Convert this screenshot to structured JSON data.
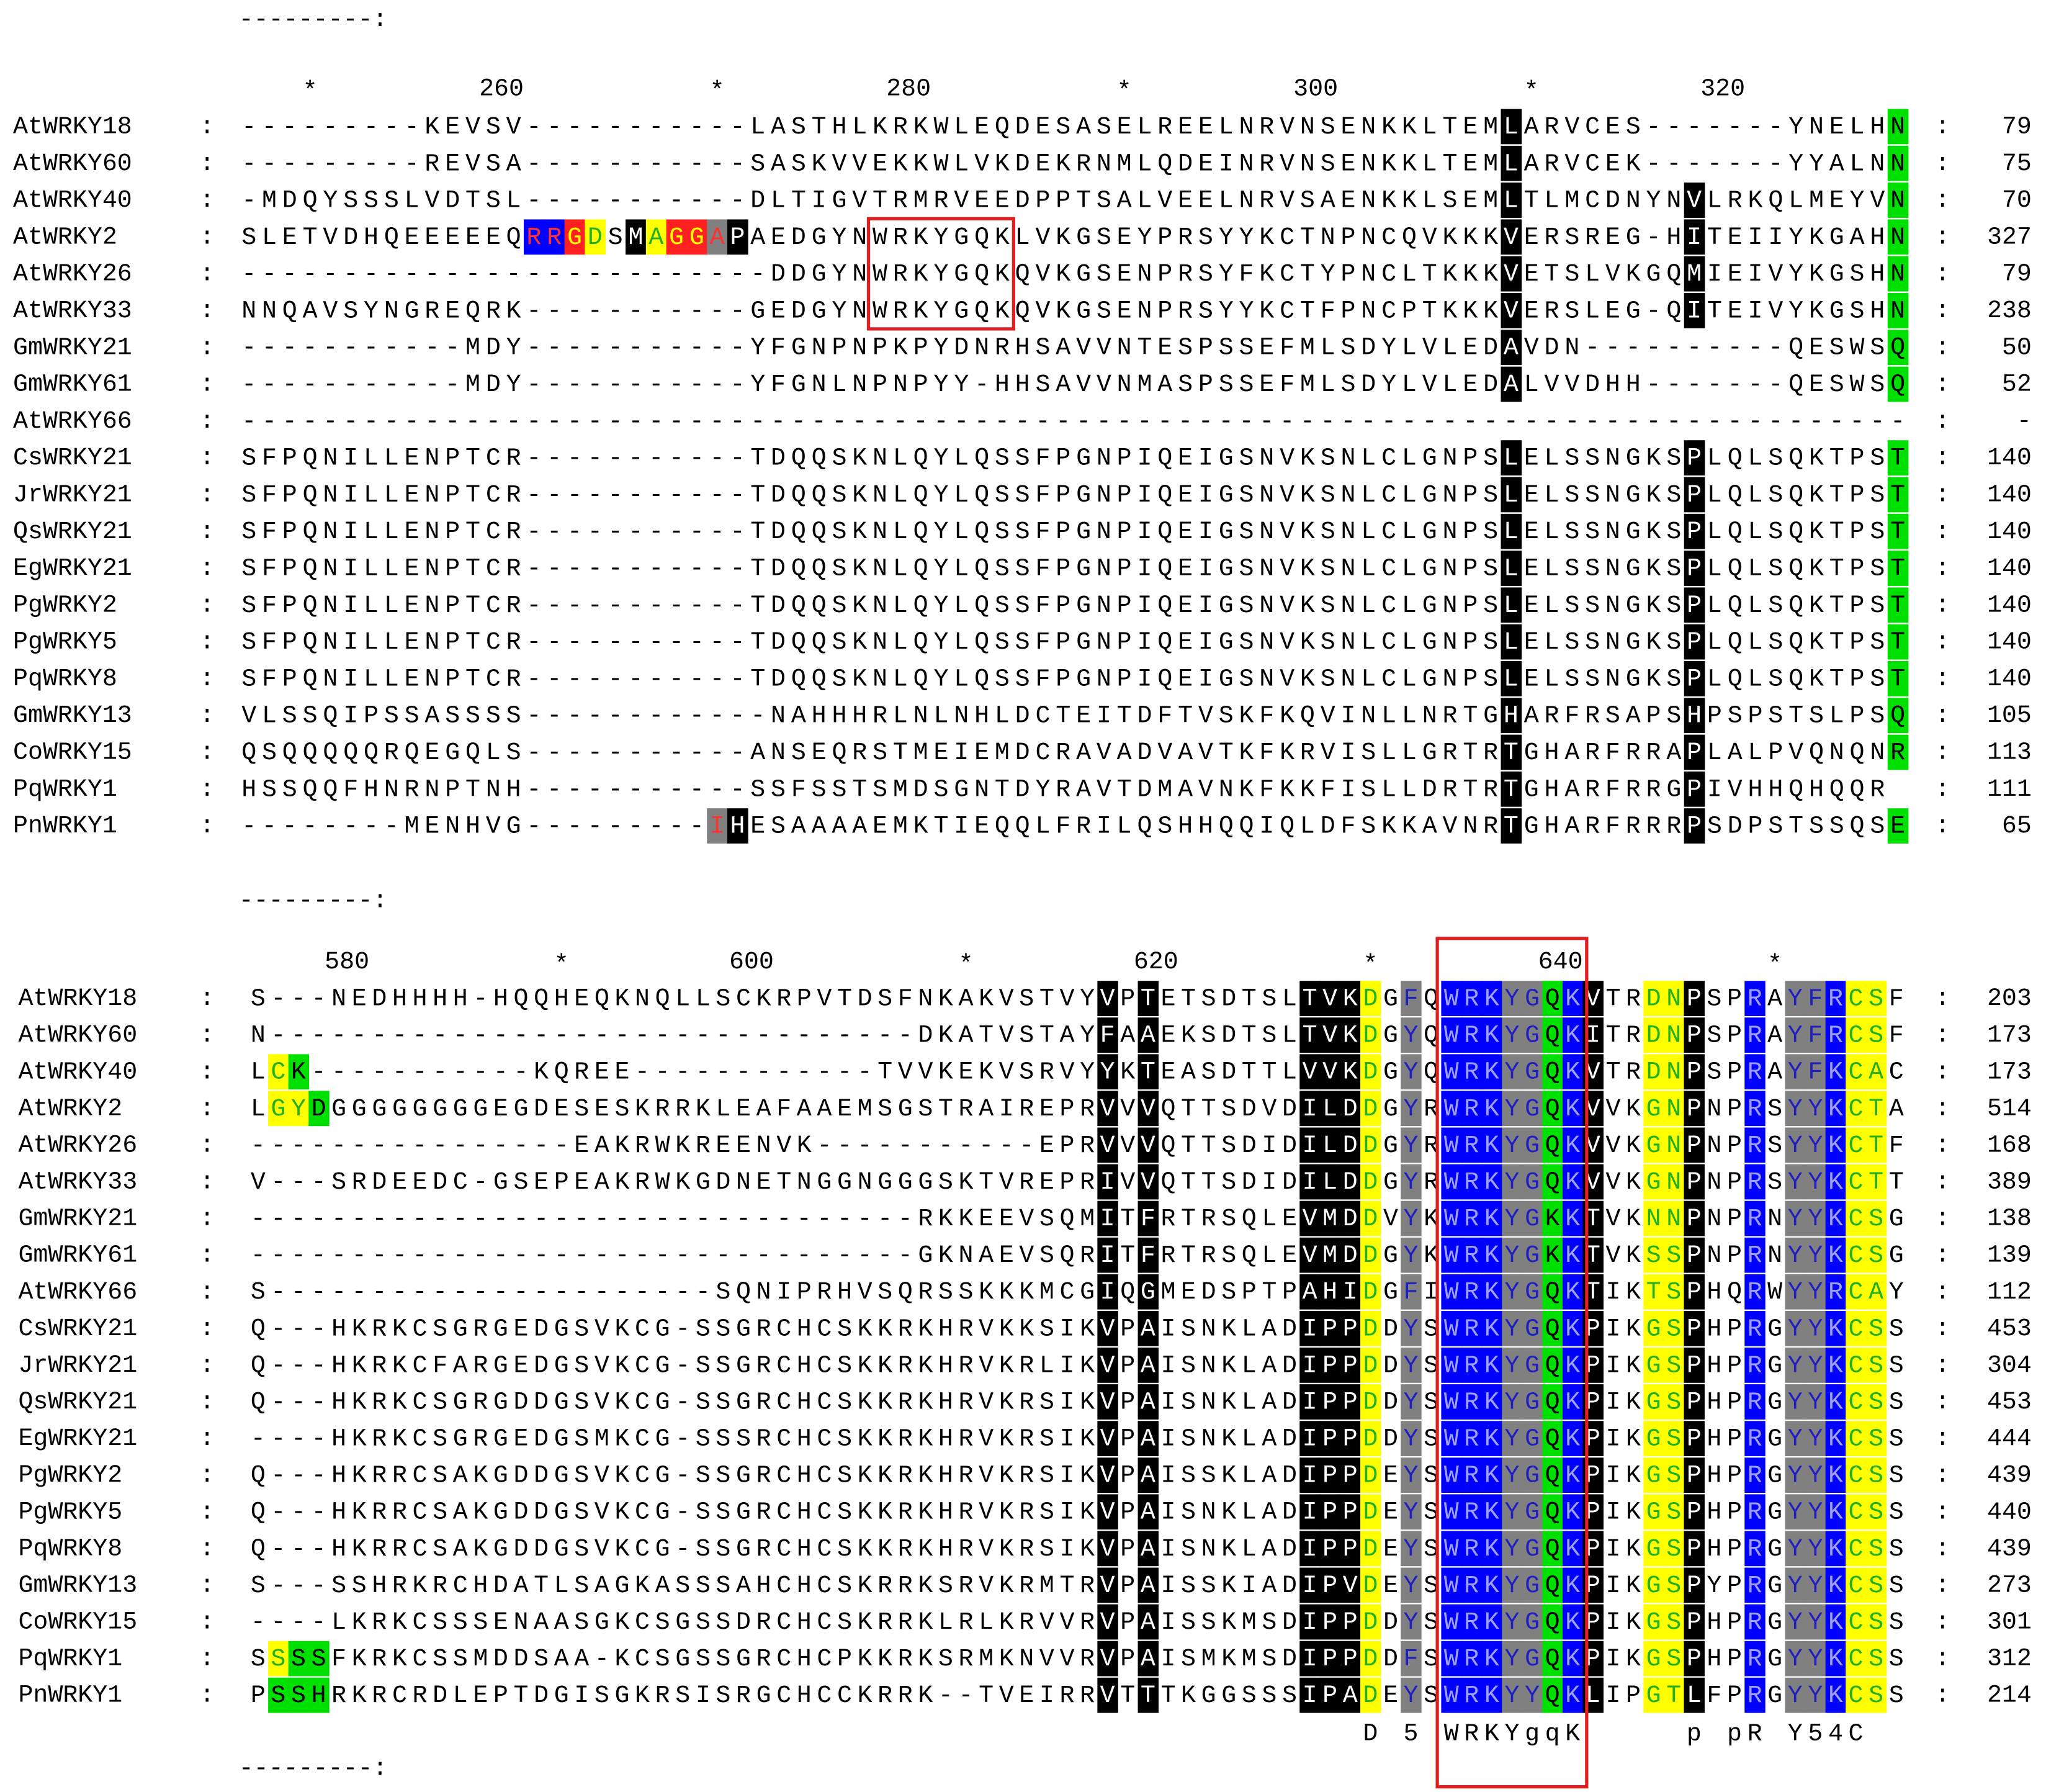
{
  "alignment": {
    "separator": "---------:",
    "delimiter": ":",
    "blocks": [
      {
        "ruler": [
          "*",
          260,
          "*",
          280,
          "*",
          300,
          "*",
          320
        ],
        "rows": [
          {
            "name": "AtWRKY18",
            "sequence": "---------KEVSV-----------LASTHLKRKWLEQDESASELREELNRVNSENKKLTEMLARVCES-------YNELHN",
            "count": 79
          },
          {
            "name": "AtWRKY60",
            "sequence": "---------REVSA-----------SASKVVEKKWLVKDEKRNMLQDEINRVNSENKKLTEMLARVCEK-------YYALNN",
            "count": 75
          },
          {
            "name": "AtWRKY40",
            "sequence": "-MDQYSSSLVDTSL-----------DLTIGVTRMRVEEDPPTSALVEELNRVSAENKKLSEMLTLMCDNYNVLRKQLMEYVN",
            "count": 70
          },
          {
            "name": "AtWRKY2",
            "sequence": "SLETVDHQEEEEEQRRGDSMAGGAPAEDGYNWRKYGQKLVKGSEYPRSYYKCTNPNCQVKKKVERSREG-HITEIIYKGAHN",
            "count": 327
          },
          {
            "name": "AtWRKY26",
            "sequence": "--------------------------DDGYNWRKYGQKQVKGSENPRSYFKCTYPNCLTKKKVETSLVKGQMIEIVYKGSHN",
            "count": 79
          },
          {
            "name": "AtWRKY33",
            "sequence": "NNQAVSYNGREQRK-----------GEDGYNWRKYGQKQVKGSENPRSYYKCTFPNCPTKKKVERSLEG-QITEIVYKGSHN",
            "count": 238
          },
          {
            "name": "GmWRKY21",
            "sequence": "-----------MDY-----------YFGNPNPKPYDNRHSAVVNTESPSSEFMLSDYLVLEDAVDN----------QESWSQ",
            "count": 50
          },
          {
            "name": "GmWRKY61",
            "sequence": "-----------MDY-----------YFGNLNPNPYY-HHSAVVNMASPSSEFMLSDYLVLEDALVVDHH-------QESWSQ",
            "count": 52
          },
          {
            "name": "AtWRKY66",
            "sequence": "----------------------------------------------------------------------------------",
            "count": "-"
          },
          {
            "name": "CsWRKY21",
            "sequence": "SFPQNILLENPTCR-----------TDQQSKNLQYLQSSFPGNPIQEIGSNVKSNLCLGNPSLELSSNGKSPLQLSQKTPST",
            "count": 140
          },
          {
            "name": "JrWRKY21",
            "sequence": "SFPQNILLENPTCR-----------TDQQSKNLQYLQSSFPGNPIQEIGSNVKSNLCLGNPSLELSSNGKSPLQLSQKTPST",
            "count": 140
          },
          {
            "name": "QsWRKY21",
            "sequence": "SFPQNILLENPTCR-----------TDQQSKNLQYLQSSFPGNPIQEIGSNVKSNLCLGNPSLELSSNGKSPLQLSQKTPST",
            "count": 140
          },
          {
            "name": "EgWRKY21",
            "sequence": "SFPQNILLENPTCR-----------TDQQSKNLQYLQSSFPGNPIQEIGSNVKSNLCLGNPSLELSSNGKSPLQLSQKTPST",
            "count": 140
          },
          {
            "name": "PgWRKY2",
            "sequence": "SFPQNILLENPTCR-----------TDQQSKNLQYLQSSFPGNPIQEIGSNVKSNLCLGNPSLELSSNGKSPLQLSQKTPST",
            "count": 140
          },
          {
            "name": "PgWRKY5",
            "sequence": "SFPQNILLENPTCR-----------TDQQSKNLQYLQSSFPGNPIQEIGSNVKSNLCLGNPSLELSSNGKSPLQLSQKTPST",
            "count": 140
          },
          {
            "name": "PqWRKY8",
            "sequence": "SFPQNILLENPTCR-----------TDQQSKNLQYLQSSFPGNPIQEIGSNVKSNLCLGNPSLELSSNGKSPLQLSQKTPST",
            "count": 140
          },
          {
            "name": "GmWRKY13",
            "sequence": "VLSSQIPSSASSSS------------NAHHHRLNLNHLDCTEITDFTVSKFKQVINLLNRTGHARFRSAPSHPSPSTSLPSQ",
            "count": 105
          },
          {
            "name": "CoWRKY15",
            "sequence": "QSQQQQQRQEGQLS-----------ANSEQRSTMEIEMDCRAVADVAVTKFKRVISLLGRTRTGHARFRRAPLALPVQNQNR",
            "count": 113
          },
          {
            "name": "PqWRKY1",
            "sequence": "HSSQQFHNRNPTNH-----------SSFSSTSMDSGNTDYRAVTDMAVNKFKKFISLLDRTRTGHARFRRGPIVHHQHQQR",
            "count": 111
          },
          {
            "name": "PnWRKY1",
            "sequence": "--------MENHVG---------IHESAAAAEMKTIEQQLFRILQSHHQQIQLDFSKKAVNRTGHARFRRRPSDPSTSSQSE",
            "count": 65
          }
        ]
      },
      {
        "ruler": [
          580,
          "*",
          600,
          "*",
          620,
          "*",
          640,
          "*"
        ],
        "rows": [
          {
            "name": "AtWRKY18",
            "sequence": "S---NEDHHHH-HQQHEQKNQLLSCKRPVTDSFNKAKVSTVYVPTETSDTSLTVKDGFQWRKYGQKVTRDNPSPRAYFRCSF",
            "count": 203
          },
          {
            "name": "AtWRKY60",
            "sequence": "N--------------------------------DKATVSTAYFAAEKSDTSLTVKDGYQWRKYGQKITRDNPSPRAYFRCSF",
            "count": 173
          },
          {
            "name": "AtWRKY40",
            "sequence": "LCK-----------KQREE------------TVVKEKVSRVYYKTEASDTTLVVKDGYQWRKYGQKVTRDNPSPRAYFKCAC",
            "count": 173
          },
          {
            "name": "AtWRKY2",
            "sequence": "LGYDGGGGGGGGEGDESESKRRKLEAFAAEMSGSTRAIREPRVVVQTTSDVDILDDGYRWRKYGQKVVKGNPNPRSYYKCTA",
            "count": 514
          },
          {
            "name": "AtWRKY26",
            "sequence": "----------------EAKRWKREENVK-----------EPRVVVQTTSDIDILDDGYRWRKYGQKVVKGNPNPRSYYKCTF",
            "count": 168
          },
          {
            "name": "AtWRKY33",
            "sequence": "V---SRDEEDC-GSEPEAKRWKGDNETNGGNGGGSKTVREPRIVVQTTSDIDILDDGYRWRKYGQKVVKGNPNPRSYYKCTT",
            "count": 389
          },
          {
            "name": "GmWRKY21",
            "sequence": "---------------------------------RKKEEVSQMITFRTRSQLEVMDDVYKWRKYGKKTVKNNPNPRNYYKCSG",
            "count": 138
          },
          {
            "name": "GmWRKY61",
            "sequence": "---------------------------------GKNAEVSQRITFRTRSQLEVMDDGYKWRKYGKKTVKSSPNPRNYYKCSG",
            "count": 139
          },
          {
            "name": "AtWRKY66",
            "sequence": "S----------------------SQNIPRHVSQRSSKKKMCGIQGMEDSPTPAHIDGFIWRKYGQKTIKTSPHQRWYYRCAY",
            "count": 112
          },
          {
            "name": "CsWRKY21",
            "sequence": "Q---HKRKCSGRGEDGSVKCG-SSGRCHCSKKRKHRVKKSIKVPAISNKLADIPPDDYSWRKYGQKPIKGSPHPRGYYKCSS",
            "count": 453
          },
          {
            "name": "JrWRKY21",
            "sequence": "Q---HKRKCFARGEDGSVKCG-SSGRCHCSKKRKHRVKRLIKVPAISNKLADIPPDDYSWRKYGQKPIKGSPHPRGYYKCSS",
            "count": 304
          },
          {
            "name": "QsWRKY21",
            "sequence": "Q---HKRKCSGRGDDGSVKCG-SSGRCHCSKKRKHRVKRSIKVPAISNKLADIPPDDYSWRKYGQKPIKGSPHPRGYYKCSS",
            "count": 453
          },
          {
            "name": "EgWRKY21",
            "sequence": "----HKRKCSGRGEDGSMKCG-SSSRCHCSKKRKHRVKRSIKVPAISNKLADIPPDDYSWRKYGQKPIKGSPHPRGYYKCSS",
            "count": 444
          },
          {
            "name": "PgWRKY2",
            "sequence": "Q---HKRRCSAKGDDGSVKCG-SSGRCHCSKKRKHRVKRSIKVPAISSKLADIPPDEYSWRKYGQKPIKGSPHPRGYYKCSS",
            "count": 439
          },
          {
            "name": "PgWRKY5",
            "sequence": "Q---HKRRCSAKGDDGSVKCG-SSGRCHCSKKRKHRVKRSIKVPAISNKLADIPPDEYSWRKYGQKPIKGSPHPRGYYKCSS",
            "count": 440
          },
          {
            "name": "PqWRKY8",
            "sequence": "Q---HKRRCSAKGDDGSVKCG-SSGRCHCSKKRKHRVKRSIKVPAISNKLADIPPDEYSWRKYGQKPIKGSPHPRGYYKCSS",
            "count": 439
          },
          {
            "name": "GmWRKY13",
            "sequence": "S---SSHRKRCHDATLSAGKASSSAHCHCSKRRKSRVKRMTRVPAISSKIADIPVDEYSWRKYGQKPIKGSPYPRGYYKCSS",
            "count": 273
          },
          {
            "name": "CoWRKY15",
            "sequence": "----LKRKCSSSENAASGKCSGSSDRCHCSKRRKLRLKRVVRVPAISSKMSDIPPDDYSWRKYGQKPIKGSPHPRGYYKCSS",
            "count": 301
          },
          {
            "name": "PqWRKY1",
            "sequence": "SSSSFKRKCSSMDDSAA-KCSGSSGRCHCPKKRKSRMKNVVRVPAISMKMSDIPPDDFSWRKYGQKPIKGSPHPRGYYKCSS",
            "count": 312
          },
          {
            "name": "PnWRKY1",
            "sequence": "PSSHRKRCRDLEPTDGISGKRSISRGCHCCKRRK--TVEIRRVTTTKGGSSSIPADEYSWRKYYQKLIPGTLFPRGYYKCSS",
            "count": 214
          }
        ],
        "consensus": "D 5 WRKYgqK     p pR Y54C"
      }
    ]
  }
}
